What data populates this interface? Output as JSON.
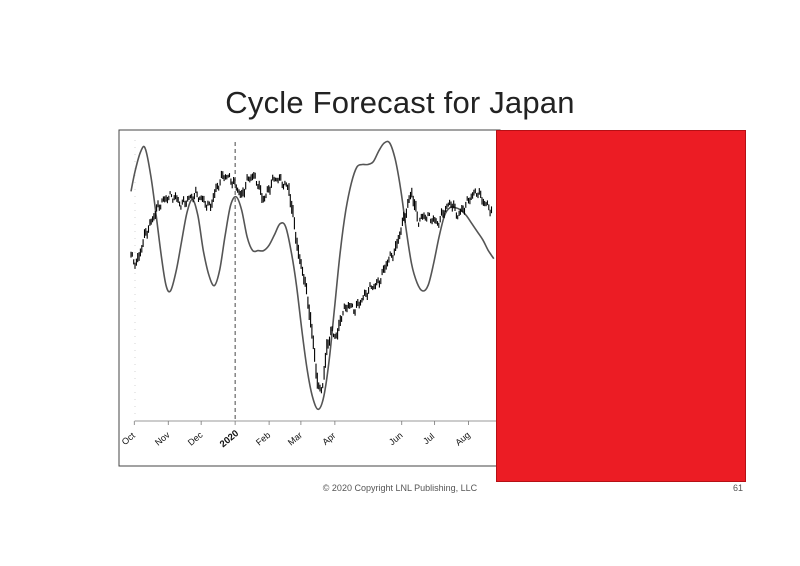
{
  "slide": {
    "title": "Cycle Forecast for Japan",
    "footer": "© 2020 Copyright LNL Publishing, LLC",
    "page_number": "61"
  },
  "colors": {
    "redaction": "#ec1c24",
    "price": "#000000",
    "cycle": "#555555"
  },
  "chart_data": {
    "type": "line",
    "title": "",
    "xlabel": "",
    "ylabel": "",
    "x_tick_labels": [
      "Oct",
      "Nov",
      "Dec",
      "2020",
      "Feb",
      "Mar",
      "Apr",
      "Jun",
      "Jul",
      "Aug"
    ],
    "x_tick_dates": [
      "2019-10-01",
      "2019-11-01",
      "2019-12-01",
      "2020-01-01",
      "2020-02-01",
      "2020-03-01",
      "2020-04-01",
      "2020-06-01",
      "2020-07-01",
      "2020-08-01"
    ],
    "xlim": [
      "2019-09-28",
      "2020-08-26"
    ],
    "marker_line": "2020-01-01",
    "y_unit": "relative",
    "ylim": [
      0,
      100
    ],
    "grid": false,
    "series": [
      {
        "kind": "price-bars",
        "points": [
          [
            "2019-09-28",
            58
          ],
          [
            "2019-10-03",
            55
          ],
          [
            "2019-10-07",
            60
          ],
          [
            "2019-10-11",
            66
          ],
          [
            "2019-10-16",
            70
          ],
          [
            "2019-10-21",
            75
          ],
          [
            "2019-10-26",
            78
          ],
          [
            "2019-11-01",
            80
          ],
          [
            "2019-11-07",
            80
          ],
          [
            "2019-11-13",
            77
          ],
          [
            "2019-11-19",
            79
          ],
          [
            "2019-11-26",
            81
          ],
          [
            "2019-12-02",
            79
          ],
          [
            "2019-12-09",
            76
          ],
          [
            "2019-12-15",
            83
          ],
          [
            "2019-12-21",
            88
          ],
          [
            "2019-12-27",
            87
          ],
          [
            "2020-01-02",
            84
          ],
          [
            "2020-01-07",
            80
          ],
          [
            "2020-01-12",
            86
          ],
          [
            "2020-01-17",
            88
          ],
          [
            "2020-01-22",
            85
          ],
          [
            "2020-01-26",
            79
          ],
          [
            "2020-01-30",
            81
          ],
          [
            "2020-02-04",
            86
          ],
          [
            "2020-02-09",
            87
          ],
          [
            "2020-02-14",
            85
          ],
          [
            "2020-02-19",
            83
          ],
          [
            "2020-02-24",
            70
          ],
          [
            "2020-02-28",
            58
          ],
          [
            "2020-03-03",
            52
          ],
          [
            "2020-03-08",
            40
          ],
          [
            "2020-03-13",
            23
          ],
          [
            "2020-03-17",
            8
          ],
          [
            "2020-03-21",
            10
          ],
          [
            "2020-03-25",
            25
          ],
          [
            "2020-03-29",
            30
          ],
          [
            "2020-04-03",
            28
          ],
          [
            "2020-04-07",
            36
          ],
          [
            "2020-04-13",
            40
          ],
          [
            "2020-04-19",
            38
          ],
          [
            "2020-04-26",
            42
          ],
          [
            "2020-05-03",
            46
          ],
          [
            "2020-05-11",
            48
          ],
          [
            "2020-05-19",
            56
          ],
          [
            "2020-05-26",
            60
          ],
          [
            "2020-06-01",
            69
          ],
          [
            "2020-06-06",
            76
          ],
          [
            "2020-06-10",
            82
          ],
          [
            "2020-06-16",
            71
          ],
          [
            "2020-06-22",
            73
          ],
          [
            "2020-06-28",
            72
          ],
          [
            "2020-07-04",
            70
          ],
          [
            "2020-07-10",
            75
          ],
          [
            "2020-07-16",
            78
          ],
          [
            "2020-07-22",
            73
          ],
          [
            "2020-07-28",
            76
          ],
          [
            "2020-08-03",
            80
          ],
          [
            "2020-08-09",
            82
          ],
          [
            "2020-08-15",
            78
          ],
          [
            "2020-08-22",
            75
          ]
        ]
      },
      {
        "kind": "cycle-forecast",
        "points": [
          [
            "2019-09-28",
            82
          ],
          [
            "2019-10-02",
            90
          ],
          [
            "2019-10-07",
            97
          ],
          [
            "2019-10-11",
            98
          ],
          [
            "2019-10-16",
            88
          ],
          [
            "2019-10-21",
            73
          ],
          [
            "2019-10-26",
            57
          ],
          [
            "2019-10-30",
            47
          ],
          [
            "2019-11-03",
            45
          ],
          [
            "2019-11-08",
            52
          ],
          [
            "2019-11-13",
            63
          ],
          [
            "2019-11-18",
            74
          ],
          [
            "2019-11-23",
            79
          ],
          [
            "2019-11-28",
            73
          ],
          [
            "2019-12-03",
            60
          ],
          [
            "2019-12-08",
            51
          ],
          [
            "2019-12-13",
            47
          ],
          [
            "2019-12-18",
            53
          ],
          [
            "2019-12-23",
            66
          ],
          [
            "2019-12-28",
            77
          ],
          [
            "2020-01-02",
            80
          ],
          [
            "2020-01-07",
            75
          ],
          [
            "2020-01-12",
            65
          ],
          [
            "2020-01-17",
            60
          ],
          [
            "2020-01-22",
            60
          ],
          [
            "2020-01-27",
            60
          ],
          [
            "2020-02-01",
            62
          ],
          [
            "2020-02-06",
            66
          ],
          [
            "2020-02-11",
            70
          ],
          [
            "2020-02-16",
            69
          ],
          [
            "2020-02-21",
            60
          ],
          [
            "2020-02-26",
            47
          ],
          [
            "2020-03-02",
            30
          ],
          [
            "2020-03-07",
            15
          ],
          [
            "2020-03-12",
            5
          ],
          [
            "2020-03-17",
            1
          ],
          [
            "2020-03-22",
            6
          ],
          [
            "2020-03-27",
            20
          ],
          [
            "2020-04-01",
            40
          ],
          [
            "2020-04-06",
            60
          ],
          [
            "2020-04-11",
            75
          ],
          [
            "2020-04-16",
            85
          ],
          [
            "2020-04-21",
            91
          ],
          [
            "2020-04-26",
            92
          ],
          [
            "2020-05-01",
            92
          ],
          [
            "2020-05-06",
            93
          ],
          [
            "2020-05-11",
            97
          ],
          [
            "2020-05-16",
            100
          ],
          [
            "2020-05-21",
            100
          ],
          [
            "2020-05-26",
            94
          ],
          [
            "2020-05-31",
            83
          ],
          [
            "2020-06-05",
            68
          ],
          [
            "2020-06-10",
            55
          ],
          [
            "2020-06-15",
            48
          ],
          [
            "2020-06-20",
            45
          ],
          [
            "2020-06-25",
            47
          ],
          [
            "2020-06-30",
            55
          ],
          [
            "2020-07-05",
            65
          ],
          [
            "2020-07-10",
            73
          ],
          [
            "2020-07-15",
            76
          ],
          [
            "2020-07-20",
            76
          ],
          [
            "2020-07-25",
            75
          ],
          [
            "2020-07-30",
            73
          ],
          [
            "2020-08-04",
            70
          ],
          [
            "2020-08-09",
            67
          ],
          [
            "2020-08-14",
            64
          ],
          [
            "2020-08-19",
            60
          ],
          [
            "2020-08-24",
            57
          ]
        ]
      }
    ]
  }
}
